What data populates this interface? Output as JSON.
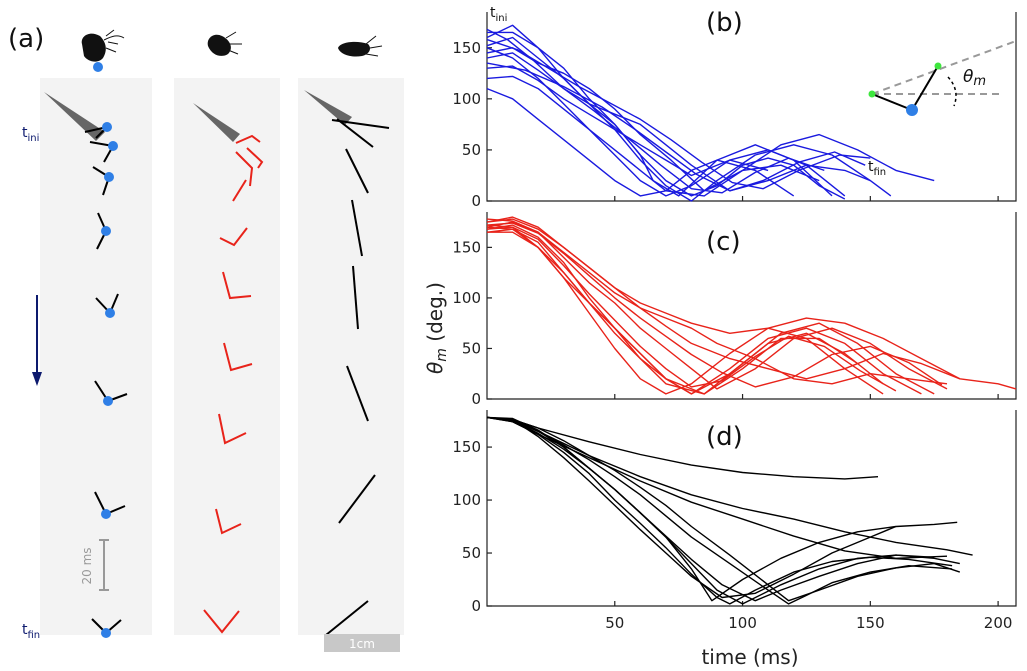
{
  "panels": {
    "a": "(a)",
    "b": "(b)",
    "c": "(c)",
    "d": "(d)"
  },
  "panel_a": {
    "t_ini": "t",
    "t_ini_sub": "ini",
    "t_fin": "t",
    "t_fin_sub": "fin",
    "time_scale": "20 ms",
    "length_scale": "1cm",
    "colors": {
      "blue": "#2f7fe6",
      "red": "#e8231a",
      "black": "#000000",
      "navy": "#0d1a6e"
    }
  },
  "inset_b": {
    "t_ini": "t",
    "t_ini_sub": "ini",
    "t_fin": "t",
    "t_fin_sub": "fin",
    "theta_symbol": "θ",
    "theta_sub": "m"
  },
  "axes": {
    "ylabel_symbol": "θ",
    "ylabel_sub": "m",
    "ylabel_rest": " (deg.)",
    "xlabel": "time (ms)",
    "xlim": [
      0,
      207
    ],
    "ylim": [
      0,
      185
    ]
  },
  "chart_data": [
    {
      "panel": "b",
      "type": "line",
      "color": "#1a1adf",
      "ylim": [
        0,
        185
      ],
      "yticks": [
        0,
        50,
        100,
        150
      ],
      "xlim": [
        0,
        207
      ],
      "xticks": [
        50,
        100,
        150,
        200
      ],
      "xticklabels_shown": false,
      "series": [
        {
          "x": [
            0,
            10,
            20,
            30,
            40,
            50,
            60,
            70,
            80,
            90,
            100,
            110,
            120,
            130,
            140
          ],
          "y": [
            165,
            165,
            150,
            120,
            95,
            75,
            45,
            20,
            5,
            15,
            35,
            42,
            35,
            15,
            2
          ]
        },
        {
          "x": [
            0,
            10,
            20,
            30,
            40,
            50,
            60,
            65,
            75,
            90,
            105,
            120,
            135
          ],
          "y": [
            160,
            172,
            150,
            130,
            100,
            75,
            45,
            20,
            5,
            40,
            55,
            40,
            5
          ]
        },
        {
          "x": [
            0,
            10,
            20,
            30,
            40,
            50,
            60,
            70,
            80,
            90,
            105,
            120,
            135,
            150,
            158
          ],
          "y": [
            152,
            160,
            140,
            120,
            95,
            70,
            40,
            15,
            0,
            20,
            45,
            55,
            45,
            20,
            5
          ]
        },
        {
          "x": [
            0,
            10,
            20,
            30,
            40,
            50,
            60,
            72,
            85,
            100,
            115,
            130,
            145,
            160,
            175
          ],
          "y": [
            145,
            150,
            135,
            125,
            110,
            90,
            65,
            40,
            10,
            30,
            55,
            65,
            50,
            30,
            20
          ]
        },
        {
          "x": [
            0,
            10,
            20,
            30,
            40,
            50,
            60,
            70,
            80,
            95,
            110,
            125,
            140,
            150
          ],
          "y": [
            140,
            145,
            128,
            110,
            95,
            85,
            75,
            55,
            35,
            10,
            20,
            35,
            30,
            20
          ]
        },
        {
          "x": [
            0,
            10,
            20,
            30,
            40,
            50,
            60,
            70,
            80,
            95,
            110,
            125,
            140
          ],
          "y": [
            130,
            132,
            118,
            100,
            85,
            70,
            55,
            40,
            25,
            40,
            50,
            35,
            5
          ]
        },
        {
          "x": [
            0,
            10,
            20,
            30,
            40,
            50,
            60,
            70,
            85,
            100,
            115,
            130
          ],
          "y": [
            120,
            122,
            110,
            90,
            70,
            50,
            30,
            10,
            5,
            30,
            35,
            20
          ]
        },
        {
          "x": [
            0,
            10,
            20,
            30,
            40,
            50,
            60,
            70,
            80,
            90,
            105,
            120
          ],
          "y": [
            110,
            100,
            80,
            60,
            40,
            20,
            5,
            10,
            30,
            40,
            30,
            5
          ]
        },
        {
          "x": [
            0,
            10,
            20,
            30,
            40,
            50,
            60,
            70,
            80,
            95,
            110
          ],
          "y": [
            150,
            140,
            120,
            95,
            70,
            45,
            20,
            5,
            15,
            40,
            30
          ]
        },
        {
          "x": [
            0,
            8,
            18,
            30,
            42,
            55,
            68,
            80,
            92,
            105,
            118,
            132
          ],
          "y": [
            168,
            158,
            138,
            110,
            88,
            62,
            35,
            12,
            8,
            28,
            42,
            30
          ]
        },
        {
          "x": [
            0,
            12,
            24,
            36,
            48,
            60,
            72,
            84,
            96,
            108,
            122,
            138,
            150
          ],
          "y": [
            158,
            148,
            130,
            112,
            96,
            80,
            60,
            38,
            18,
            12,
            30,
            45,
            42
          ]
        },
        {
          "x": [
            0,
            15,
            30,
            45,
            58,
            70,
            82,
            95,
            108,
            122,
            136,
            148
          ],
          "y": [
            135,
            128,
            112,
            92,
            70,
            48,
            26,
            10,
            20,
            38,
            48,
            35
          ]
        }
      ]
    },
    {
      "panel": "c",
      "type": "line",
      "color": "#e8231a",
      "ylim": [
        0,
        185
      ],
      "yticks": [
        0,
        50,
        100,
        150
      ],
      "xlim": [
        0,
        207
      ],
      "xticks": [
        50,
        100,
        150,
        200
      ],
      "xticklabels_shown": false,
      "series": [
        {
          "x": [
            0,
            10,
            20,
            30,
            40,
            50,
            60,
            70,
            80,
            95,
            110,
            125,
            140,
            155,
            170,
            185,
            200,
            207
          ],
          "y": [
            175,
            180,
            170,
            150,
            130,
            110,
            95,
            85,
            75,
            65,
            70,
            80,
            75,
            60,
            40,
            20,
            15,
            10
          ]
        },
        {
          "x": [
            0,
            10,
            20,
            30,
            40,
            50,
            60,
            70,
            80,
            90,
            105,
            120,
            135,
            150,
            165,
            180
          ],
          "y": [
            170,
            175,
            165,
            140,
            115,
            95,
            70,
            50,
            30,
            10,
            30,
            60,
            70,
            55,
            30,
            10
          ]
        },
        {
          "x": [
            0,
            10,
            20,
            30,
            40,
            50,
            60,
            70,
            85,
            100,
            115,
            130,
            145,
            160,
            175
          ],
          "y": [
            168,
            172,
            160,
            135,
            100,
            70,
            40,
            15,
            5,
            35,
            65,
            75,
            55,
            25,
            5
          ]
        },
        {
          "x": [
            0,
            10,
            20,
            30,
            40,
            50,
            60,
            70,
            80,
            95,
            110,
            125,
            140,
            155,
            170
          ],
          "y": [
            165,
            168,
            155,
            125,
            95,
            70,
            45,
            20,
            5,
            30,
            60,
            70,
            55,
            25,
            5
          ]
        },
        {
          "x": [
            0,
            10,
            20,
            30,
            40,
            50,
            60,
            70,
            80,
            95,
            110,
            125,
            140,
            155
          ],
          "y": [
            172,
            170,
            150,
            120,
            85,
            50,
            20,
            5,
            15,
            45,
            70,
            60,
            30,
            5
          ]
        },
        {
          "x": [
            0,
            10,
            20,
            30,
            40,
            50,
            60,
            70,
            80,
            90,
            105,
            120,
            135,
            150,
            165,
            180
          ],
          "y": [
            178,
            176,
            165,
            145,
            125,
            105,
            90,
            80,
            70,
            55,
            40,
            20,
            15,
            25,
            20,
            15
          ]
        },
        {
          "x": [
            0,
            10,
            20,
            30,
            40,
            50,
            60,
            70,
            80,
            95,
            110,
            125,
            140,
            155
          ],
          "y": [
            170,
            168,
            150,
            120,
            95,
            65,
            40,
            20,
            5,
            25,
            55,
            65,
            45,
            15
          ]
        },
        {
          "x": [
            0,
            10,
            20,
            30,
            40,
            50,
            60,
            70,
            85,
            100,
            115,
            130,
            145
          ],
          "y": [
            165,
            165,
            150,
            125,
            95,
            70,
            45,
            20,
            5,
            30,
            60,
            60,
            35
          ]
        },
        {
          "x": [
            0,
            10,
            20,
            30,
            40,
            50,
            60,
            70,
            80,
            95,
            110,
            125,
            140,
            155,
            170,
            185
          ],
          "y": [
            175,
            178,
            168,
            150,
            130,
            110,
            90,
            72,
            55,
            40,
            30,
            20,
            30,
            45,
            35,
            20
          ]
        },
        {
          "x": [
            0,
            10,
            20,
            30,
            40,
            50,
            60,
            70,
            80,
            92,
            105,
            118,
            132,
            146,
            160
          ],
          "y": [
            168,
            170,
            158,
            132,
            104,
            78,
            52,
            30,
            12,
            18,
            42,
            62,
            52,
            28,
            8
          ]
        },
        {
          "x": [
            0,
            10,
            20,
            30,
            40,
            50,
            60,
            70,
            80,
            92,
            105,
            120,
            135,
            150,
            165,
            178
          ],
          "y": [
            172,
            174,
            164,
            144,
            122,
            100,
            80,
            62,
            44,
            26,
            12,
            22,
            44,
            52,
            36,
            14
          ]
        }
      ]
    },
    {
      "panel": "d",
      "type": "line",
      "color": "#000000",
      "ylim": [
        0,
        185
      ],
      "yticks": [
        0,
        50,
        100,
        150
      ],
      "xlim": [
        0,
        207
      ],
      "xticks": [
        50,
        100,
        150,
        200
      ],
      "xticklabels": [
        "50",
        "100",
        "150",
        "200"
      ],
      "xlabel": "time (ms)",
      "series": [
        {
          "x": [
            0,
            10,
            20,
            40,
            60,
            80,
            100,
            120,
            140,
            153
          ],
          "y": [
            178,
            176,
            168,
            155,
            143,
            133,
            126,
            122,
            120,
            122
          ]
        },
        {
          "x": [
            0,
            10,
            20,
            40,
            60,
            80,
            100,
            120,
            140,
            160,
            180,
            190
          ],
          "y": [
            178,
            175,
            165,
            142,
            122,
            105,
            92,
            82,
            70,
            60,
            53,
            48
          ]
        },
        {
          "x": [
            0,
            10,
            20,
            40,
            60,
            80,
            100,
            120,
            140,
            160,
            180
          ],
          "y": [
            178,
            174,
            162,
            140,
            118,
            98,
            82,
            66,
            52,
            45,
            47
          ]
        },
        {
          "x": [
            0,
            10,
            20,
            30,
            40,
            50,
            60,
            70,
            80,
            88,
            100,
            115,
            130,
            145,
            160,
            175,
            184
          ],
          "y": [
            178,
            175,
            163,
            148,
            130,
            110,
            88,
            65,
            35,
            5,
            25,
            45,
            60,
            70,
            75,
            77,
            79
          ]
        },
        {
          "x": [
            0,
            10,
            20,
            30,
            40,
            50,
            60,
            70,
            80,
            90,
            100,
            115,
            130,
            145,
            160,
            175,
            185
          ],
          "y": [
            178,
            176,
            165,
            150,
            130,
            110,
            88,
            65,
            40,
            15,
            2,
            20,
            35,
            45,
            48,
            45,
            40
          ]
        },
        {
          "x": [
            0,
            10,
            20,
            30,
            40,
            50,
            60,
            70,
            80,
            90,
            95,
            105,
            120,
            135,
            150,
            165,
            182
          ],
          "y": [
            178,
            174,
            162,
            145,
            125,
            100,
            78,
            55,
            30,
            8,
            2,
            15,
            32,
            42,
            46,
            44,
            38
          ]
        },
        {
          "x": [
            0,
            10,
            20,
            30,
            40,
            50,
            60,
            70,
            80,
            95,
            110,
            118,
            125,
            135,
            150,
            165,
            182
          ],
          "y": [
            178,
            175,
            165,
            152,
            138,
            122,
            105,
            85,
            65,
            40,
            15,
            2,
            10,
            22,
            32,
            38,
            35
          ]
        },
        {
          "x": [
            0,
            10,
            20,
            30,
            40,
            50,
            60,
            70,
            80,
            95,
            110,
            118,
            130,
            145,
            160,
            175,
            185
          ],
          "y": [
            178,
            176,
            168,
            156,
            142,
            128,
            112,
            95,
            75,
            48,
            20,
            5,
            15,
            28,
            36,
            40,
            32
          ]
        },
        {
          "x": [
            0,
            10,
            20,
            30,
            40,
            50,
            60,
            70,
            80,
            92,
            105,
            120,
            135,
            150,
            160
          ],
          "y": [
            178,
            176,
            160,
            140,
            118,
            95,
            72,
            50,
            28,
            8,
            12,
            30,
            50,
            65,
            75
          ]
        },
        {
          "x": [
            0,
            10,
            20,
            30,
            40,
            50,
            60,
            70,
            80,
            92,
            105,
            115,
            130,
            145,
            160,
            175
          ],
          "y": [
            178,
            177,
            166,
            150,
            130,
            110,
            88,
            66,
            44,
            20,
            5,
            15,
            28,
            40,
            48,
            46
          ]
        }
      ]
    }
  ]
}
